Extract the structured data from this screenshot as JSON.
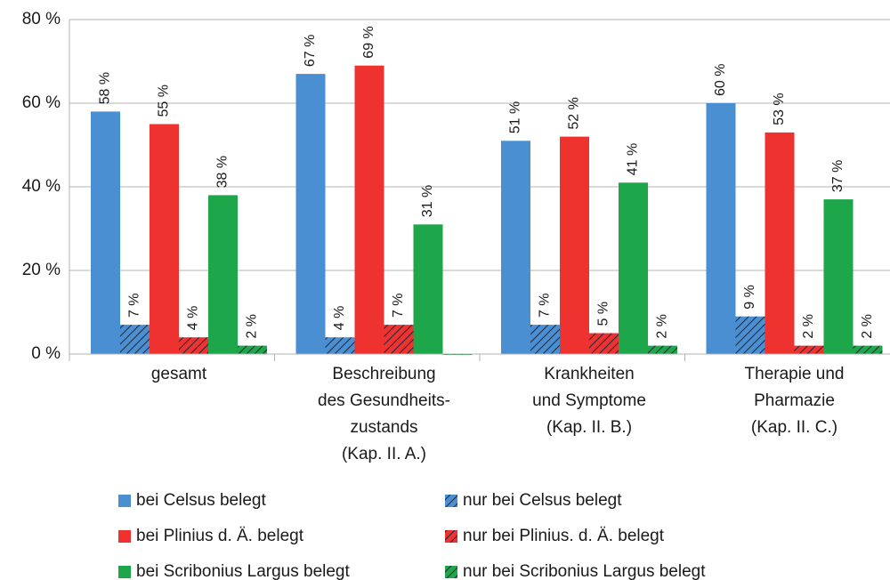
{
  "chart_data": {
    "type": "bar",
    "categories": [
      [
        "gesamt"
      ],
      [
        "Beschreibung",
        "des Gesundheits-",
        "zustands",
        "(Kap. II. A.)"
      ],
      [
        "Krankheiten",
        "und Symptome",
        "(Kap. II. B.)"
      ],
      [
        "Therapie und",
        "Pharmazie",
        "(Kap. II. C.)"
      ]
    ],
    "series": [
      {
        "name": "bei Celsus belegt",
        "color": "#4a8fd1",
        "hatch": false,
        "values": [
          58,
          67,
          51,
          60
        ],
        "value_labels": [
          "58 %",
          "67 %",
          "51 %",
          "60 %"
        ]
      },
      {
        "name": "nur bei Celsus belegt",
        "color": "#4a8fd1",
        "hatch": true,
        "values": [
          7,
          4,
          7,
          9
        ],
        "value_labels": [
          "7 %",
          "4 %",
          "7 %",
          "9 %"
        ]
      },
      {
        "name": "bei Plinius d. Ä. belegt",
        "color": "#ee3230",
        "hatch": false,
        "values": [
          55,
          69,
          52,
          53
        ],
        "value_labels": [
          "55 %",
          "69 %",
          "52 %",
          "53 %"
        ]
      },
      {
        "name": "nur bei Plinius. d. Ä. belegt",
        "color": "#ee3230",
        "hatch": true,
        "values": [
          4,
          7,
          5,
          2
        ],
        "value_labels": [
          "4 %",
          "7 %",
          "5 %",
          "2 %"
        ]
      },
      {
        "name": "bei Scribonius Largus belegt",
        "color": "#1ea64a",
        "hatch": false,
        "values": [
          38,
          31,
          41,
          37
        ],
        "value_labels": [
          "38 %",
          "31 %",
          "41 %",
          "37 %"
        ]
      },
      {
        "name": "nur bei Scribonius Largus belegt",
        "color": "#1ea64a",
        "hatch": true,
        "values": [
          2,
          0,
          2,
          2
        ],
        "value_labels": [
          "2 %",
          null,
          "2 %",
          "2 %"
        ]
      }
    ],
    "ylim": [
      0,
      80
    ],
    "yticks": [
      {
        "value": 0,
        "label": "0 %"
      },
      {
        "value": 20,
        "label": "20 %"
      },
      {
        "value": 40,
        "label": "40 %"
      },
      {
        "value": 60,
        "label": "60 %"
      },
      {
        "value": 80,
        "label": "80 %"
      }
    ],
    "grid": true,
    "legend": "bottom"
  }
}
